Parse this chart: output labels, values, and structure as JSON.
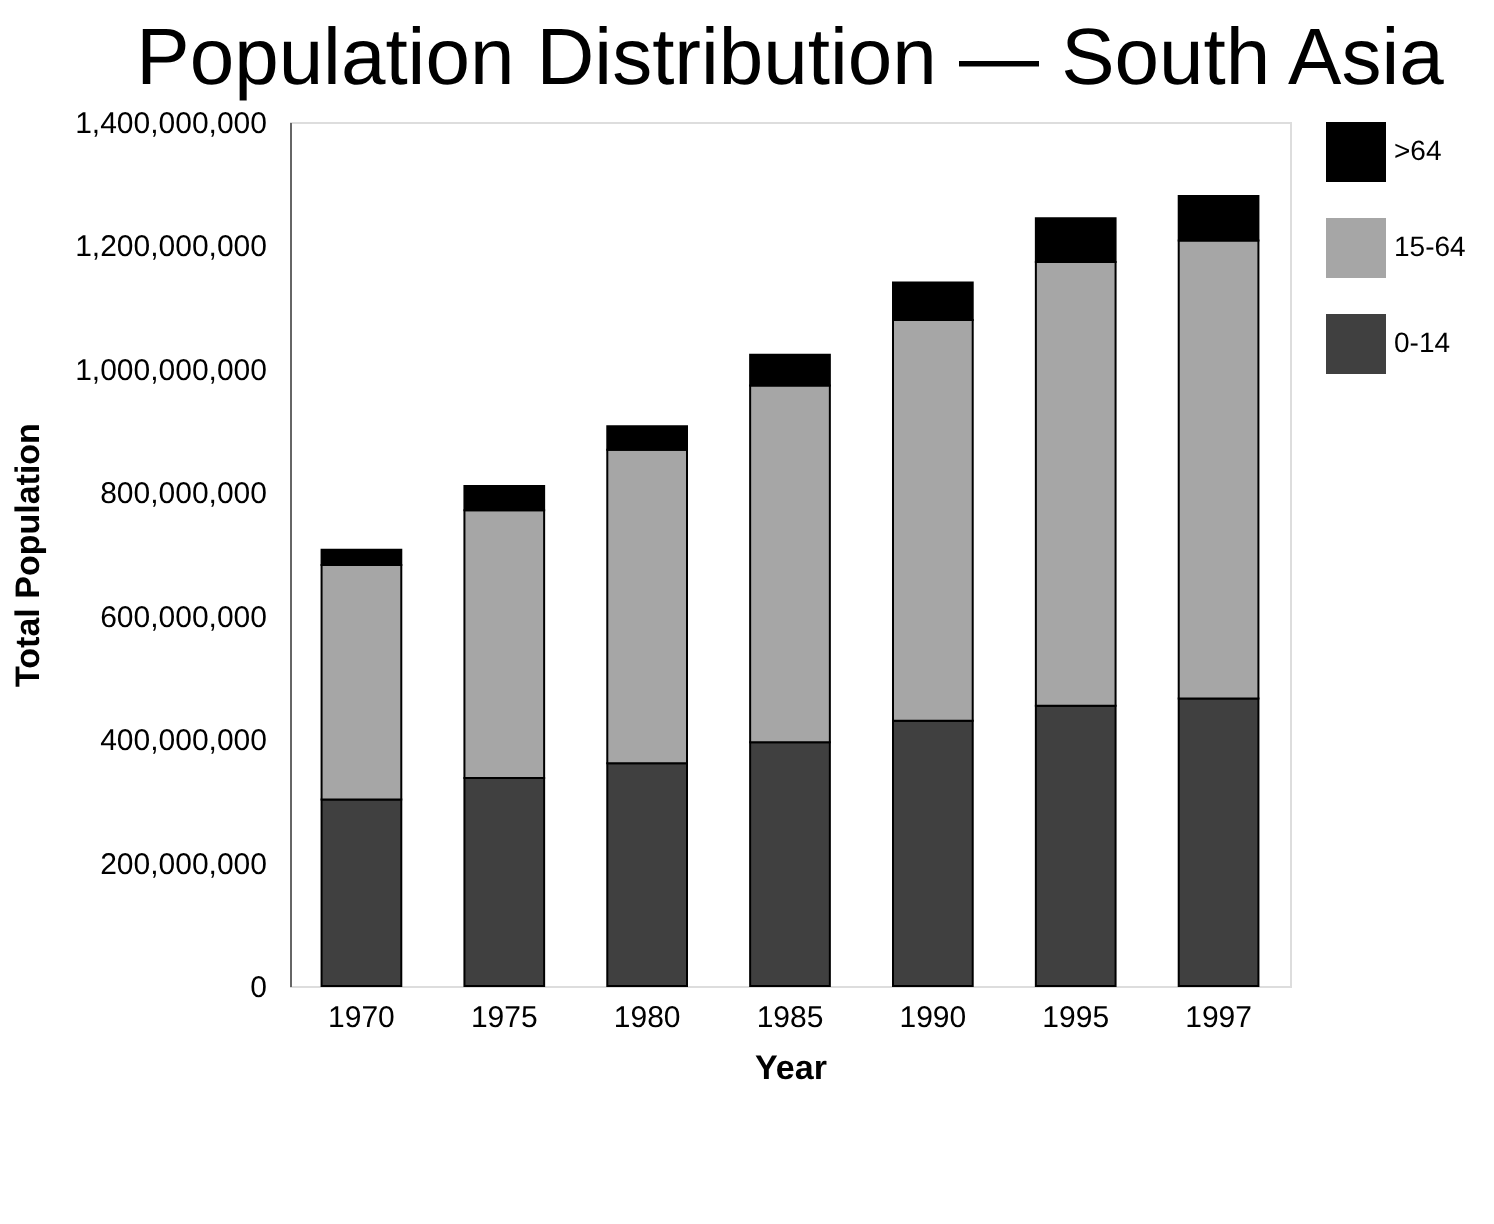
{
  "chart_data": {
    "type": "bar",
    "title": "Population Distribution — South Asia",
    "xlabel": "Year",
    "ylabel": "Total Population",
    "categories": [
      "1970",
      "1975",
      "1980",
      "1985",
      "1990",
      "1995",
      "1997"
    ],
    "stacked": true,
    "series": [
      {
        "name": "0-14",
        "color": "#404040",
        "values": [
          302000000,
          337000000,
          361000000,
          395000000,
          430000000,
          454000000,
          466000000
        ]
      },
      {
        "name": "15-64",
        "color": "#a6a6a6",
        "values": [
          380000000,
          434000000,
          508000000,
          578000000,
          649000000,
          719000000,
          742000000
        ]
      },
      {
        "name": ">64",
        "color": "#000000",
        "values": [
          25000000,
          39000000,
          38000000,
          50000000,
          61000000,
          71000000,
          72000000
        ]
      }
    ],
    "ylim": [
      0,
      1400000000
    ],
    "yticks": [
      0,
      {
        "value": 200000000,
        "label": "200,000,000"
      },
      {
        "value": 400000000,
        "label": "400,000,000"
      },
      {
        "value": 600000000,
        "label": "600,000,000"
      },
      {
        "value": 800000000,
        "label": "800,000,000"
      },
      {
        "value": 1000000000,
        "label": "1,000,000,000"
      },
      {
        "value": 1200000000,
        "label": "1,200,000,000"
      },
      {
        "value": 1400000000,
        "label": "1,400,000,000"
      }
    ],
    "grid": false,
    "legend": "right"
  }
}
